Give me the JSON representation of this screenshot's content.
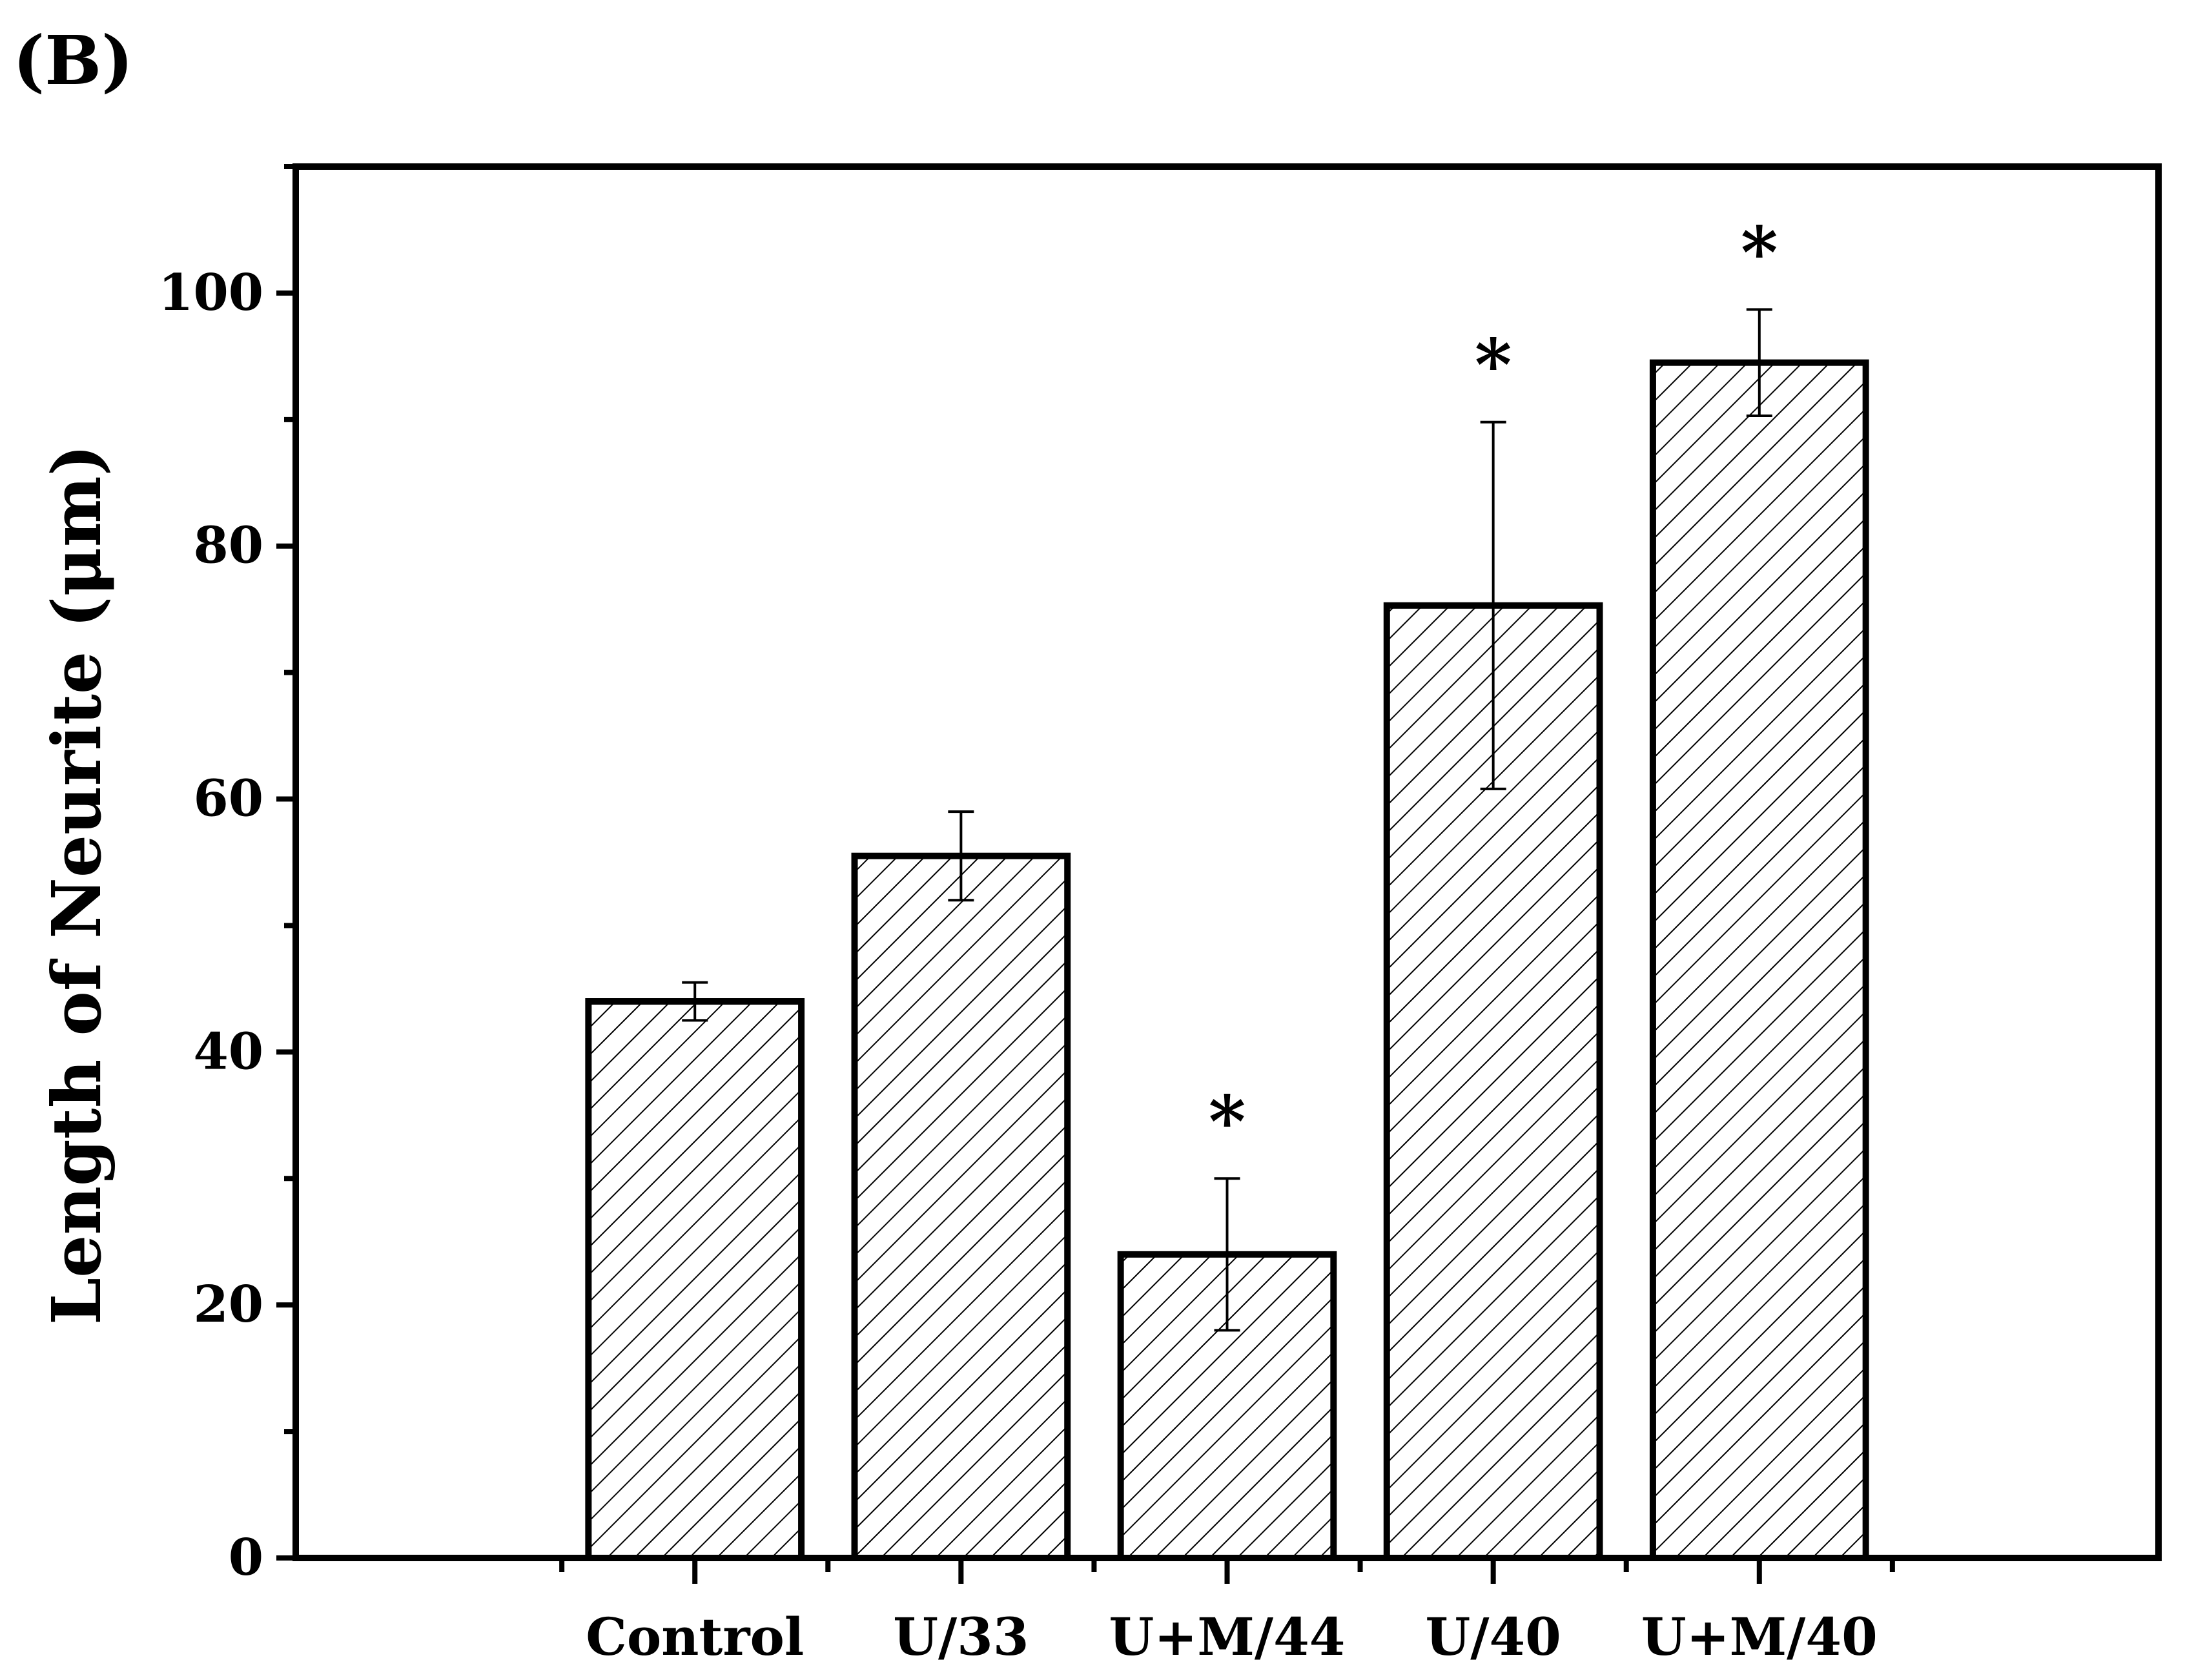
{
  "panel_label": "(B)",
  "chart_data": {
    "type": "bar",
    "title": "",
    "xlabel": "",
    "ylabel": "Length of Neurite (μm)",
    "ylim": [
      0,
      110
    ],
    "yticks": [
      "0",
      "20",
      "40",
      "60",
      "80",
      "100"
    ],
    "categories": [
      "Control",
      "U/33",
      "U+M/44",
      "U/40",
      "U+M/40"
    ],
    "values": [
      44,
      55.5,
      24,
      75.3,
      94.5
    ],
    "errors": [
      1.5,
      3.5,
      6,
      14.5,
      4.2
    ],
    "significance": [
      "",
      "",
      "*",
      "*",
      "*"
    ],
    "grid": false,
    "bar_fill": "diagonal-hatch",
    "colors": {
      "bar_stroke": "#000000",
      "hatch": "#000000",
      "background": "#ffffff"
    }
  }
}
